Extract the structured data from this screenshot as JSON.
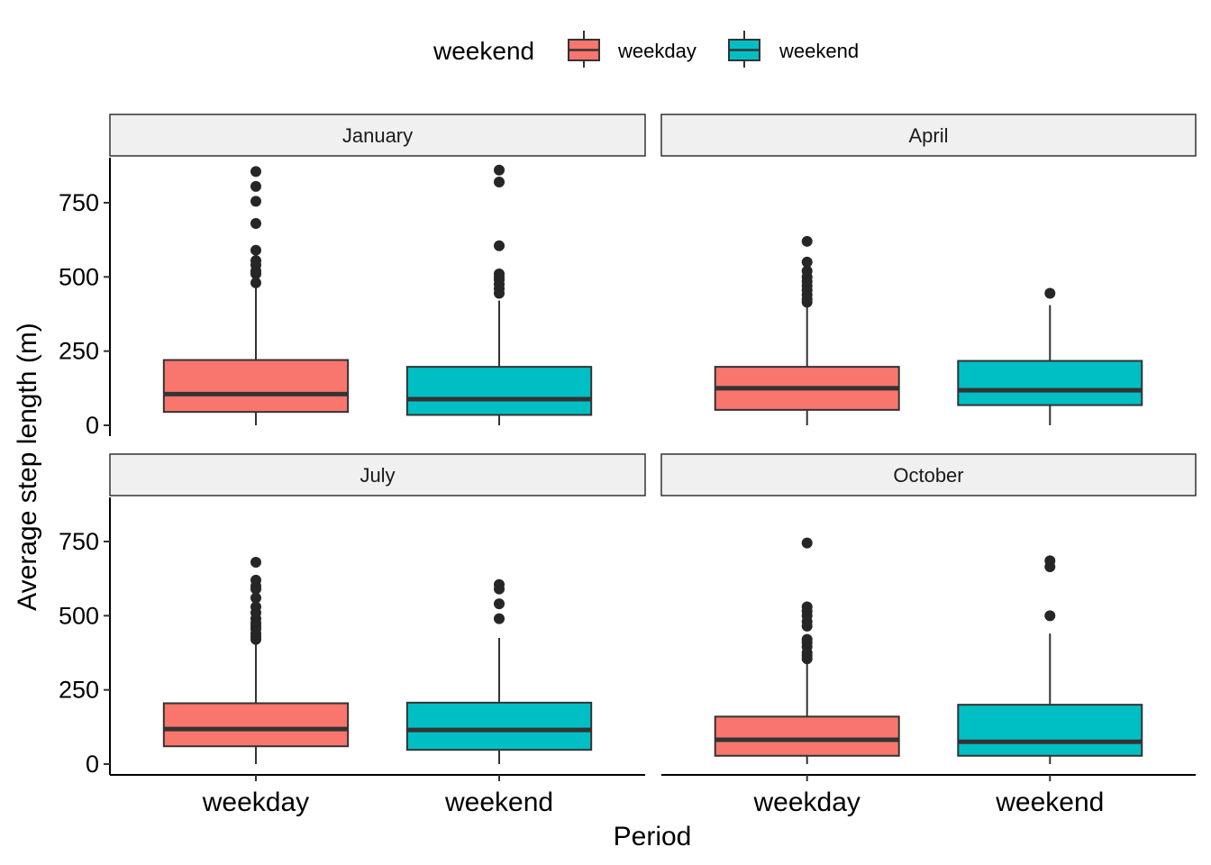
{
  "chart_data": {
    "type": "boxplot",
    "title": "",
    "xlabel": "Period",
    "ylabel": "Average step length (m)",
    "ylim": [
      0,
      900
    ],
    "yticks": [
      0,
      250,
      500,
      750
    ],
    "categories": [
      "weekday",
      "weekend"
    ],
    "legend": {
      "title": "weekend",
      "position": "top",
      "entries": [
        {
          "label": "weekday",
          "color": "#F8766D"
        },
        {
          "label": "weekend",
          "color": "#00BFC4"
        }
      ]
    },
    "grid": false,
    "facets": [
      {
        "label": "January",
        "boxes": [
          {
            "category": "weekday",
            "lower": 0,
            "q1": 45,
            "median": 105,
            "q3": 220,
            "upper": 470,
            "outliers": [
              480,
              510,
              520,
              540,
              555,
              590,
              680,
              755,
              805,
              855
            ]
          },
          {
            "category": "weekend",
            "lower": 0,
            "q1": 35,
            "median": 88,
            "q3": 197,
            "upper": 420,
            "outliers": [
              445,
              460,
              475,
              490,
              500,
              510,
              605,
              820,
              860
            ]
          }
        ]
      },
      {
        "label": "April",
        "boxes": [
          {
            "category": "weekday",
            "lower": 0,
            "q1": 52,
            "median": 125,
            "q3": 197,
            "upper": 410,
            "outliers": [
              415,
              425,
              440,
              455,
              470,
              485,
              500,
              520,
              550,
              620
            ]
          },
          {
            "category": "weekend",
            "lower": 0,
            "q1": 68,
            "median": 118,
            "q3": 217,
            "upper": 405,
            "outliers": [
              445
            ]
          }
        ]
      },
      {
        "label": "July",
        "boxes": [
          {
            "category": "weekday",
            "lower": 0,
            "q1": 60,
            "median": 118,
            "q3": 205,
            "upper": 410,
            "outliers": [
              420,
              430,
              440,
              455,
              465,
              475,
              490,
              510,
              530,
              560,
              590,
              600,
              620,
              680
            ]
          },
          {
            "category": "weekend",
            "lower": 0,
            "q1": 48,
            "median": 115,
            "q3": 207,
            "upper": 425,
            "outliers": [
              490,
              540,
              590,
              605
            ]
          }
        ]
      },
      {
        "label": "October",
        "boxes": [
          {
            "category": "weekday",
            "lower": 0,
            "q1": 28,
            "median": 82,
            "q3": 160,
            "upper": 355,
            "outliers": [
              355,
              365,
              375,
              395,
              410,
              420,
              465,
              480,
              500,
              515,
              530,
              745
            ]
          },
          {
            "category": "weekend",
            "lower": 0,
            "q1": 28,
            "median": 75,
            "q3": 200,
            "upper": 440,
            "outliers": [
              500,
              665,
              685
            ]
          }
        ]
      }
    ]
  },
  "colors": {
    "weekday": "#F8766D",
    "weekend": "#00BFC4",
    "outline": "#333333",
    "strip_bg": "#F0F0F0"
  }
}
